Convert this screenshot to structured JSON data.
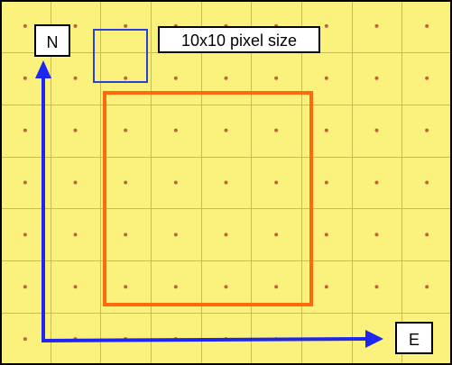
{
  "labels": {
    "north": "N",
    "east": "E",
    "pixel_size_note": "10x10 pixel size"
  },
  "grid": {
    "columns": 9,
    "rows": 7
  },
  "colors": {
    "background": "#FAF27C",
    "grid_line": "#C9BE4C",
    "border": "#000000",
    "pixel_dot": "#C5603E",
    "single_pixel_outline": "#2A3FE0",
    "region_outline": "#FF6A0A",
    "axis_arrow": "#1E26F0",
    "label_box_fill": "#FFFFFF"
  },
  "icons": {
    "north_axis": "arrow-up-icon",
    "east_axis": "arrow-right-icon"
  }
}
